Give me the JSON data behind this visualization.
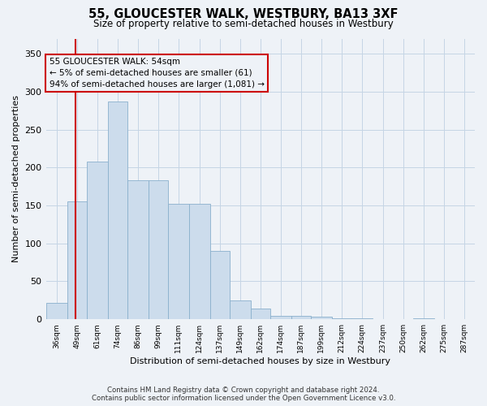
{
  "title": "55, GLOUCESTER WALK, WESTBURY, BA13 3XF",
  "subtitle": "Size of property relative to semi-detached houses in Westbury",
  "xlabel": "Distribution of semi-detached houses by size in Westbury",
  "ylabel": "Number of semi-detached properties",
  "footer_line1": "Contains HM Land Registry data © Crown copyright and database right 2024.",
  "footer_line2": "Contains public sector information licensed under the Open Government Licence v3.0.",
  "annotation_title": "55 GLOUCESTER WALK: 54sqm",
  "annotation_line1": "← 5% of semi-detached houses are smaller (61)",
  "annotation_line2": "94% of semi-detached houses are larger (1,081) →",
  "property_size": 54,
  "bar_labels": [
    "36sqm",
    "49sqm",
    "61sqm",
    "74sqm",
    "86sqm",
    "99sqm",
    "111sqm",
    "124sqm",
    "137sqm",
    "149sqm",
    "162sqm",
    "174sqm",
    "187sqm",
    "199sqm",
    "212sqm",
    "224sqm",
    "237sqm",
    "250sqm",
    "262sqm",
    "275sqm",
    "287sqm"
  ],
  "bar_values": [
    22,
    155,
    208,
    287,
    183,
    183,
    152,
    152,
    90,
    25,
    14,
    5,
    5,
    3,
    1,
    1,
    0,
    0,
    1,
    0,
    0
  ],
  "bin_edges": [
    36,
    49,
    61,
    74,
    86,
    99,
    111,
    124,
    137,
    149,
    162,
    174,
    187,
    199,
    212,
    224,
    237,
    250,
    262,
    275,
    287,
    300
  ],
  "bar_color": "#ccdcec",
  "bar_edge_color": "#8ab0cc",
  "grid_color": "#c5d5e5",
  "property_line_color": "#cc0000",
  "annotation_box_color": "#cc0000",
  "bg_color": "#eef2f7",
  "ylim": [
    0,
    370
  ],
  "yticks": [
    0,
    50,
    100,
    150,
    200,
    250,
    300,
    350
  ]
}
